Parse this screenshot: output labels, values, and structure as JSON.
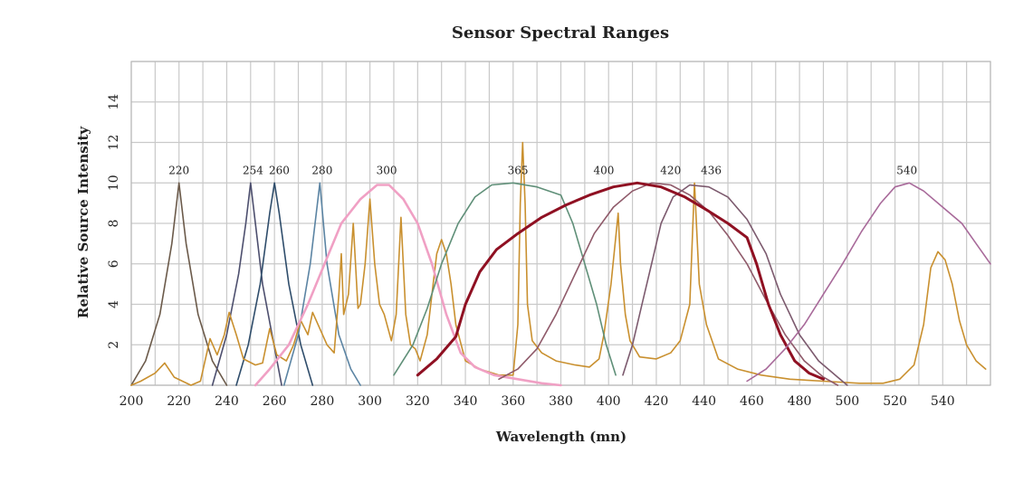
{
  "chart_data": {
    "type": "line",
    "title": "Sensor Spectral Ranges",
    "xlabel": "Wavelength (mn)",
    "ylabel": "Relative Source Intensity",
    "xlim": [
      200,
      560
    ],
    "ylim": [
      0,
      16
    ],
    "x_ticks": [
      "200",
      "220",
      "240",
      "260",
      "280",
      "300",
      "320",
      "340",
      "360",
      "380",
      "400",
      "420",
      "440",
      "460",
      "480",
      "500",
      "520",
      "540"
    ],
    "y_ticks": [
      "2",
      "4",
      "6",
      "8",
      "10",
      "12",
      "14"
    ],
    "grid": true,
    "peak_labels": [
      {
        "text": "220",
        "x": 220
      },
      {
        "text": "254",
        "x": 251
      },
      {
        "text": "260",
        "x": 262
      },
      {
        "text": "280",
        "x": 280
      },
      {
        "text": "300",
        "x": 307
      },
      {
        "text": "365",
        "x": 362
      },
      {
        "text": "400",
        "x": 398
      },
      {
        "text": "420",
        "x": 426
      },
      {
        "text": "436",
        "x": 443
      },
      {
        "text": "540",
        "x": 525
      }
    ],
    "series": [
      {
        "color": "#6b5a4a",
        "points": [
          [
            200,
            0
          ],
          [
            206,
            1.2
          ],
          [
            212,
            3.5
          ],
          [
            217,
            7
          ],
          [
            220,
            10
          ],
          [
            223,
            7
          ],
          [
            228,
            3.5
          ],
          [
            234,
            1.2
          ],
          [
            240,
            0
          ]
        ]
      },
      {
        "color": "#4d4f6e",
        "points": [
          [
            234,
            0
          ],
          [
            240,
            2.5
          ],
          [
            245,
            5.5
          ],
          [
            248,
            8
          ],
          [
            250,
            10
          ],
          [
            252,
            8
          ],
          [
            255,
            5
          ],
          [
            259,
            2.5
          ],
          [
            263,
            0
          ]
        ]
      },
      {
        "color": "#2f4d6b",
        "points": [
          [
            244,
            0
          ],
          [
            249,
            2
          ],
          [
            254,
            5
          ],
          [
            258,
            8.5
          ],
          [
            260,
            10
          ],
          [
            262,
            8.5
          ],
          [
            266,
            5
          ],
          [
            271,
            2
          ],
          [
            276,
            0
          ]
        ]
      },
      {
        "color": "#5b84a3",
        "points": [
          [
            264,
            0
          ],
          [
            270,
            2.5
          ],
          [
            275,
            6
          ],
          [
            279,
            10
          ],
          [
            282,
            6
          ],
          [
            287,
            2.5
          ],
          [
            292,
            0.8
          ],
          [
            296,
            0
          ]
        ]
      },
      {
        "color": "#c9902f",
        "points": [
          [
            200,
            0
          ],
          [
            204,
            0.2
          ],
          [
            210,
            0.6
          ],
          [
            214,
            1.1
          ],
          [
            218,
            0.4
          ],
          [
            225,
            0
          ],
          [
            229,
            0.2
          ],
          [
            233,
            2.3
          ],
          [
            236,
            1.5
          ],
          [
            239,
            2.5
          ],
          [
            241,
            3.6
          ],
          [
            244,
            2.5
          ],
          [
            247,
            1.3
          ],
          [
            252,
            1
          ],
          [
            255,
            1.1
          ],
          [
            258,
            2.8
          ],
          [
            261,
            1.5
          ],
          [
            265,
            1.2
          ],
          [
            268,
            2
          ],
          [
            271,
            3.2
          ],
          [
            274,
            2.5
          ],
          [
            276,
            3.6
          ],
          [
            279,
            2.8
          ],
          [
            282,
            2
          ],
          [
            285,
            1.6
          ],
          [
            287,
            4.5
          ],
          [
            288,
            6.5
          ],
          [
            289,
            3.5
          ],
          [
            291,
            4.5
          ],
          [
            293,
            8
          ],
          [
            295,
            3.8
          ],
          [
            296,
            4
          ],
          [
            298,
            6
          ],
          [
            300,
            9.2
          ],
          [
            302,
            6
          ],
          [
            304,
            4
          ],
          [
            306,
            3.5
          ],
          [
            309,
            2.2
          ],
          [
            311,
            3.5
          ],
          [
            313,
            8.3
          ],
          [
            315,
            3.5
          ],
          [
            317,
            2
          ],
          [
            319,
            1.8
          ],
          [
            321,
            1.2
          ],
          [
            324,
            2.5
          ],
          [
            326,
            4.5
          ],
          [
            328,
            6.5
          ],
          [
            330,
            7.2
          ],
          [
            332,
            6.5
          ],
          [
            334,
            5
          ],
          [
            336,
            3
          ],
          [
            340,
            1.2
          ],
          [
            346,
            0.8
          ],
          [
            354,
            0.5
          ],
          [
            360,
            0.5
          ],
          [
            362,
            3
          ],
          [
            363,
            9
          ],
          [
            364,
            12
          ],
          [
            365,
            9
          ],
          [
            366,
            4
          ],
          [
            368,
            2.2
          ],
          [
            372,
            1.6
          ],
          [
            378,
            1.2
          ],
          [
            386,
            1
          ],
          [
            392,
            0.9
          ],
          [
            396,
            1.3
          ],
          [
            398,
            2.5
          ],
          [
            401,
            5
          ],
          [
            404,
            8.5
          ],
          [
            405,
            6
          ],
          [
            407,
            3.5
          ],
          [
            409,
            2.2
          ],
          [
            413,
            1.4
          ],
          [
            420,
            1.3
          ],
          [
            426,
            1.6
          ],
          [
            430,
            2.2
          ],
          [
            434,
            4
          ],
          [
            436,
            10
          ],
          [
            438,
            5
          ],
          [
            441,
            3
          ],
          [
            446,
            1.3
          ],
          [
            454,
            0.8
          ],
          [
            464,
            0.5
          ],
          [
            476,
            0.3
          ],
          [
            490,
            0.2
          ],
          [
            505,
            0.1
          ],
          [
            515,
            0.1
          ],
          [
            522,
            0.3
          ],
          [
            528,
            1
          ],
          [
            532,
            3
          ],
          [
            535,
            5.8
          ],
          [
            538,
            6.6
          ],
          [
            541,
            6.2
          ],
          [
            544,
            5
          ],
          [
            547,
            3.2
          ],
          [
            550,
            2
          ],
          [
            554,
            1.2
          ],
          [
            558,
            0.8
          ]
        ]
      },
      {
        "color": "#f0a0c4",
        "points": [
          [
            252,
            0
          ],
          [
            258,
            0.8
          ],
          [
            266,
            2
          ],
          [
            274,
            4
          ],
          [
            281,
            6
          ],
          [
            288,
            8
          ],
          [
            296,
            9.2
          ],
          [
            303,
            9.9
          ],
          [
            308,
            9.9
          ],
          [
            314,
            9.2
          ],
          [
            320,
            8
          ],
          [
            326,
            6
          ],
          [
            332,
            3.5
          ],
          [
            338,
            1.6
          ],
          [
            344,
            0.9
          ],
          [
            352,
            0.5
          ],
          [
            362,
            0.3
          ],
          [
            372,
            0.1
          ],
          [
            380,
            0
          ]
        ]
      },
      {
        "color": "#5f8f78",
        "points": [
          [
            310,
            0.5
          ],
          [
            318,
            2
          ],
          [
            324,
            3.8
          ],
          [
            330,
            6
          ],
          [
            337,
            8
          ],
          [
            344,
            9.3
          ],
          [
            351,
            9.9
          ],
          [
            360,
            10
          ],
          [
            370,
            9.8
          ],
          [
            380,
            9.4
          ],
          [
            385,
            8
          ],
          [
            390,
            6
          ],
          [
            395,
            4
          ],
          [
            399,
            2
          ],
          [
            403,
            0.5
          ]
        ]
      },
      {
        "color": "#8f5a6a",
        "points": [
          [
            354,
            0.3
          ],
          [
            362,
            0.8
          ],
          [
            370,
            1.8
          ],
          [
            378,
            3.5
          ],
          [
            386,
            5.5
          ],
          [
            394,
            7.5
          ],
          [
            402,
            8.8
          ],
          [
            410,
            9.6
          ],
          [
            418,
            10
          ],
          [
            426,
            9.9
          ],
          [
            434,
            9.4
          ],
          [
            442,
            8.6
          ],
          [
            450,
            7.4
          ],
          [
            458,
            6
          ],
          [
            466,
            4.2
          ],
          [
            474,
            2.5
          ],
          [
            482,
            1.2
          ],
          [
            490,
            0.4
          ],
          [
            496,
            0
          ]
        ]
      },
      {
        "color": "#7c5a6e",
        "points": [
          [
            406,
            0.5
          ],
          [
            410,
            2
          ],
          [
            414,
            4
          ],
          [
            418,
            6
          ],
          [
            422,
            8
          ],
          [
            427,
            9.3
          ],
          [
            434,
            9.9
          ],
          [
            442,
            9.8
          ],
          [
            450,
            9.3
          ],
          [
            458,
            8.2
          ],
          [
            466,
            6.5
          ],
          [
            472,
            4.5
          ],
          [
            480,
            2.5
          ],
          [
            488,
            1.2
          ],
          [
            496,
            0.4
          ],
          [
            500,
            0
          ]
        ]
      },
      {
        "color": "#8f1022",
        "points": [
          [
            320,
            0.5
          ],
          [
            328,
            1.3
          ],
          [
            336,
            2.4
          ],
          [
            340,
            4
          ],
          [
            346,
            5.6
          ],
          [
            353,
            6.7
          ],
          [
            362,
            7.5
          ],
          [
            372,
            8.3
          ],
          [
            382,
            8.9
          ],
          [
            392,
            9.4
          ],
          [
            402,
            9.8
          ],
          [
            412,
            10
          ],
          [
            422,
            9.8
          ],
          [
            432,
            9.3
          ],
          [
            442,
            8.6
          ],
          [
            450,
            8
          ],
          [
            458,
            7.3
          ],
          [
            462,
            6
          ],
          [
            467,
            4
          ],
          [
            472,
            2.5
          ],
          [
            478,
            1.2
          ],
          [
            484,
            0.6
          ],
          [
            490,
            0.3
          ]
        ]
      },
      {
        "color": "#a86a9a",
        "points": [
          [
            458,
            0.2
          ],
          [
            466,
            0.8
          ],
          [
            474,
            1.8
          ],
          [
            482,
            3
          ],
          [
            490,
            4.5
          ],
          [
            498,
            6
          ],
          [
            506,
            7.6
          ],
          [
            514,
            9
          ],
          [
            520,
            9.8
          ],
          [
            526,
            10
          ],
          [
            532,
            9.6
          ],
          [
            540,
            8.8
          ],
          [
            548,
            8
          ],
          [
            554,
            7
          ],
          [
            560,
            6
          ]
        ]
      }
    ]
  }
}
